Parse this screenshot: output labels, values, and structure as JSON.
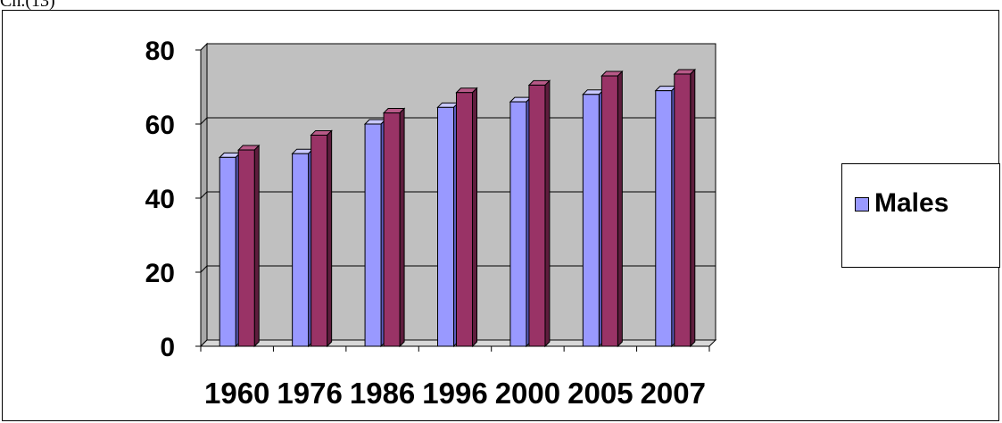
{
  "page": {
    "caption": "Ch.(13)"
  },
  "chart_data": {
    "type": "bar",
    "categories": [
      "1960",
      "1976",
      "1986",
      "1996",
      "2000",
      "2005",
      "2007"
    ],
    "series": [
      {
        "name": "Males",
        "values": [
          51,
          52,
          60,
          64.5,
          66,
          68,
          69
        ]
      },
      {
        "values": [
          53,
          57,
          63,
          68.5,
          70.5,
          73,
          73.5
        ]
      }
    ],
    "ylim": [
      0,
      80
    ],
    "yticks": [
      0,
      20,
      40,
      60,
      80
    ],
    "grid": true,
    "legend_position": "right",
    "colors": {
      "series_1_front": "#9999ff",
      "series_1_side": "#5c5cbe",
      "series_1_top": "#c8c8ff",
      "series_2_front": "#993366",
      "series_2_side": "#5e1d3d",
      "series_2_top": "#b85a88",
      "plot_background": "#c0c0c0",
      "floor": "#d8d8d8"
    }
  }
}
